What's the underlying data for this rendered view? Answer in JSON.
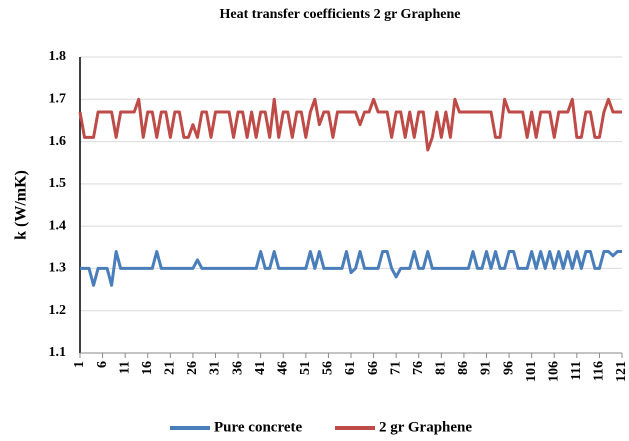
{
  "chart_data": {
    "type": "line",
    "title": "Heat transfer coefficients 2 gr Graphene",
    "y_label": "k (W/mK)",
    "x": [
      1,
      2,
      3,
      4,
      5,
      6,
      7,
      8,
      9,
      10,
      11,
      12,
      13,
      14,
      15,
      16,
      17,
      18,
      19,
      20,
      21,
      22,
      23,
      24,
      25,
      26,
      27,
      28,
      29,
      30,
      31,
      32,
      33,
      34,
      35,
      36,
      37,
      38,
      39,
      40,
      41,
      42,
      43,
      44,
      45,
      46,
      47,
      48,
      49,
      50,
      51,
      52,
      53,
      54,
      55,
      56,
      57,
      58,
      59,
      60,
      61,
      62,
      63,
      64,
      65,
      66,
      67,
      68,
      69,
      70,
      71,
      72,
      73,
      74,
      75,
      76,
      77,
      78,
      79,
      80,
      81,
      82,
      83,
      84,
      85,
      86,
      87,
      88,
      89,
      90,
      91,
      92,
      93,
      94,
      95,
      96,
      97,
      98,
      99,
      100,
      101,
      102,
      103,
      104,
      105,
      106,
      107,
      108,
      109,
      110,
      111,
      112,
      113,
      114,
      115,
      116,
      117,
      118,
      119,
      120,
      121
    ],
    "xlim": [
      1,
      121
    ],
    "xticks": [
      1,
      6,
      11,
      16,
      21,
      26,
      31,
      36,
      41,
      46,
      51,
      56,
      61,
      66,
      71,
      76,
      81,
      86,
      91,
      96,
      101,
      106,
      111,
      116,
      121
    ],
    "ylim": [
      1.1,
      1.8
    ],
    "yticks": [
      1.1,
      1.2,
      1.3,
      1.4,
      1.5,
      1.6,
      1.7,
      1.8
    ],
    "grid": true,
    "legend": "bottom",
    "series": [
      {
        "name": "Pure concrete",
        "color": "#4a7ebb",
        "values": [
          1.3,
          1.3,
          1.3,
          1.26,
          1.3,
          1.3,
          1.3,
          1.26,
          1.34,
          1.3,
          1.3,
          1.3,
          1.3,
          1.3,
          1.3,
          1.3,
          1.3,
          1.34,
          1.3,
          1.3,
          1.3,
          1.3,
          1.3,
          1.3,
          1.3,
          1.3,
          1.32,
          1.3,
          1.3,
          1.3,
          1.3,
          1.3,
          1.3,
          1.3,
          1.3,
          1.3,
          1.3,
          1.3,
          1.3,
          1.3,
          1.34,
          1.3,
          1.3,
          1.34,
          1.3,
          1.3,
          1.3,
          1.3,
          1.3,
          1.3,
          1.3,
          1.34,
          1.3,
          1.34,
          1.3,
          1.3,
          1.3,
          1.3,
          1.3,
          1.34,
          1.29,
          1.3,
          1.34,
          1.3,
          1.3,
          1.3,
          1.3,
          1.34,
          1.34,
          1.3,
          1.28,
          1.3,
          1.3,
          1.3,
          1.34,
          1.3,
          1.3,
          1.34,
          1.3,
          1.3,
          1.3,
          1.3,
          1.3,
          1.3,
          1.3,
          1.3,
          1.3,
          1.34,
          1.3,
          1.3,
          1.34,
          1.3,
          1.34,
          1.3,
          1.3,
          1.34,
          1.34,
          1.3,
          1.3,
          1.3,
          1.34,
          1.3,
          1.34,
          1.3,
          1.34,
          1.3,
          1.34,
          1.3,
          1.34,
          1.3,
          1.34,
          1.3,
          1.34,
          1.34,
          1.3,
          1.3,
          1.34,
          1.34,
          1.33,
          1.34,
          1.34
        ]
      },
      {
        "name": "2 gr Graphene",
        "color": "#be4b48",
        "values": [
          1.67,
          1.61,
          1.61,
          1.61,
          1.67,
          1.67,
          1.67,
          1.67,
          1.61,
          1.67,
          1.67,
          1.67,
          1.67,
          1.7,
          1.61,
          1.67,
          1.67,
          1.61,
          1.67,
          1.67,
          1.61,
          1.67,
          1.67,
          1.61,
          1.61,
          1.64,
          1.61,
          1.67,
          1.67,
          1.61,
          1.67,
          1.67,
          1.67,
          1.67,
          1.61,
          1.67,
          1.67,
          1.61,
          1.67,
          1.61,
          1.67,
          1.67,
          1.61,
          1.7,
          1.61,
          1.67,
          1.67,
          1.61,
          1.67,
          1.67,
          1.61,
          1.67,
          1.7,
          1.64,
          1.67,
          1.67,
          1.61,
          1.67,
          1.67,
          1.67,
          1.67,
          1.67,
          1.64,
          1.67,
          1.67,
          1.7,
          1.67,
          1.67,
          1.67,
          1.61,
          1.67,
          1.67,
          1.61,
          1.67,
          1.61,
          1.67,
          1.67,
          1.58,
          1.61,
          1.67,
          1.61,
          1.67,
          1.61,
          1.7,
          1.67,
          1.67,
          1.67,
          1.67,
          1.67,
          1.67,
          1.67,
          1.67,
          1.61,
          1.61,
          1.7,
          1.67,
          1.67,
          1.67,
          1.67,
          1.61,
          1.67,
          1.61,
          1.67,
          1.67,
          1.67,
          1.61,
          1.67,
          1.67,
          1.67,
          1.7,
          1.61,
          1.61,
          1.67,
          1.67,
          1.61,
          1.61,
          1.67,
          1.7,
          1.67,
          1.67,
          1.67
        ]
      }
    ]
  }
}
